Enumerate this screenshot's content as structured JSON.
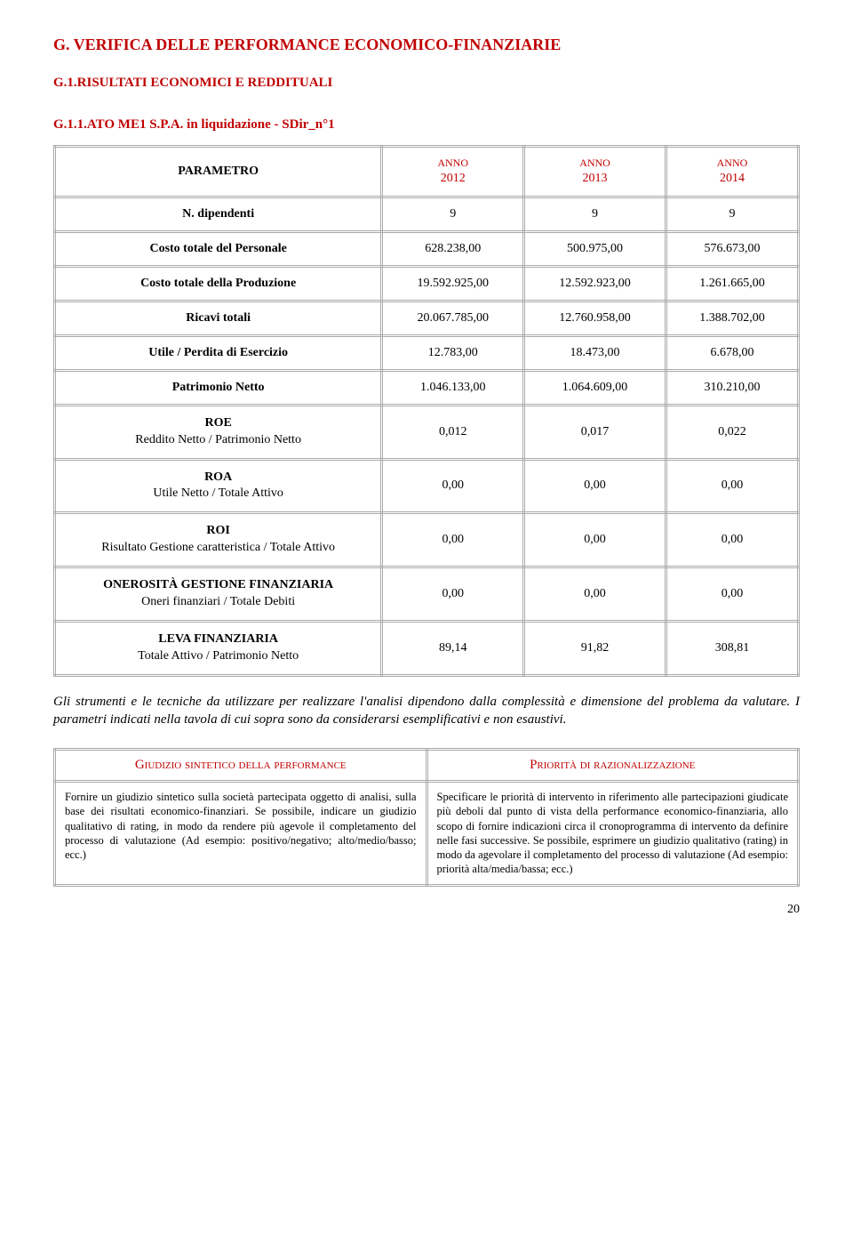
{
  "headings": {
    "section": "G.   VERIFICA DELLE PERFORMANCE ECONOMICO-FINANZIARIE",
    "subsection": "G.1.RISULTATI ECONOMICI E REDDITUALI",
    "tablename": "G.1.1.ATO ME1 S.P.A. in liquidazione - SDir_n°1"
  },
  "table": {
    "header_param": "PARAMETRO",
    "year_label": "ANNO",
    "years": [
      "2012",
      "2013",
      "2014"
    ],
    "rows_simple": [
      {
        "label": "N. dipendenti",
        "vals": [
          "9",
          "9",
          "9"
        ]
      },
      {
        "label": "Costo totale del Personale",
        "vals": [
          "628.238,00",
          "500.975,00",
          "576.673,00"
        ]
      },
      {
        "label": "Costo totale della Produzione",
        "vals": [
          "19.592.925,00",
          "12.592.923,00",
          "1.261.665,00"
        ]
      },
      {
        "label": "Ricavi totali",
        "vals": [
          "20.067.785,00",
          "12.760.958,00",
          "1.388.702,00"
        ]
      },
      {
        "label": "Utile / Perdita di Esercizio",
        "vals": [
          "12.783,00",
          "18.473,00",
          "6.678,00"
        ]
      },
      {
        "label": "Patrimonio Netto",
        "vals": [
          "1.046.133,00",
          "1.064.609,00",
          "310.210,00"
        ]
      }
    ],
    "rows_ratio": [
      {
        "main": "ROE",
        "sub": "Reddito Netto / Patrimonio Netto",
        "vals": [
          "0,012",
          "0,017",
          "0,022"
        ]
      },
      {
        "main": "ROA",
        "sub": "Utile Netto / Totale Attivo",
        "vals": [
          "0,00",
          "0,00",
          "0,00"
        ]
      },
      {
        "main": "ROI",
        "sub": "Risultato Gestione caratteristica / Totale Attivo",
        "vals": [
          "0,00",
          "0,00",
          "0,00"
        ]
      },
      {
        "main": "ONEROSITÀ GESTIONE FINANZIARIA",
        "sub": "Oneri finanziari / Totale Debiti",
        "vals": [
          "0,00",
          "0,00",
          "0,00"
        ]
      },
      {
        "main": "LEVA FINANZIARIA",
        "sub": "Totale Attivo / Patrimonio Netto",
        "vals": [
          "89,14",
          "91,82",
          "308,81"
        ]
      }
    ]
  },
  "note": "Gli strumenti e le tecniche da utilizzare per realizzare l'analisi dipendono dalla complessità e dimensione del problema da valutare. I parametri indicati nella tavola di cui sopra sono da considerarsi esemplificativi e non esaustivi.",
  "judgement": {
    "hdr_left": "Giudizio sintetico della performance",
    "hdr_right": "Priorità di razionalizzazione",
    "left": "Fornire un giudizio sintetico sulla società partecipata oggetto di analisi, sulla base dei risultati economico-finanziari. Se possibile, indicare un giudizio qualitativo di rating, in modo da rendere più agevole il completamento del processo di valutazione (Ad esempio: positivo/negativo; alto/medio/basso; ecc.)",
    "right": "Specificare le priorità di intervento in riferimento alle partecipazioni giudicate più deboli dal punto di vista della performance economico-finanziaria, allo scopo di fornire indicazioni circa il cronoprogramma di intervento da definire nelle fasi successive. Se possibile, esprimere un giudizio qualitativo (rating) in modo da agevolare il completamento del processo di valutazione (Ad esempio: priorità alta/media/bassa; ecc.)"
  },
  "pagenum": "20"
}
